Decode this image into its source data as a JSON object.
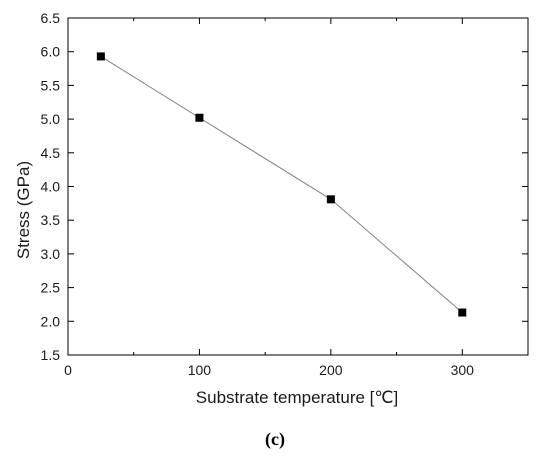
{
  "chart_data": {
    "type": "line",
    "title": "",
    "xlabel": "Substrate temperature [℃]",
    "ylabel": "Stress (GPa)",
    "panel_label": "(c)",
    "xlim": [
      0,
      350
    ],
    "ylim": [
      1.5,
      6.5
    ],
    "xticks_major": [
      0,
      100,
      200,
      300
    ],
    "xtick_labels": [
      "0",
      "100",
      "200",
      "300"
    ],
    "yticks_major": [
      1.5,
      2.0,
      2.5,
      3.0,
      3.5,
      4.0,
      4.5,
      5.0,
      5.5,
      6.0,
      6.5
    ],
    "ytick_labels": [
      "1.5",
      "2.0",
      "2.5",
      "3.0",
      "3.5",
      "4.0",
      "4.5",
      "5.0",
      "5.5",
      "6.0",
      "6.5"
    ],
    "grid": false,
    "legend": "none",
    "series": [
      {
        "x": [
          25,
          100,
          200,
          300
        ],
        "y": [
          5.93,
          5.02,
          3.81,
          2.13
        ],
        "marker": "square",
        "marker_color": "#000000",
        "line_color": "#808080"
      }
    ]
  }
}
